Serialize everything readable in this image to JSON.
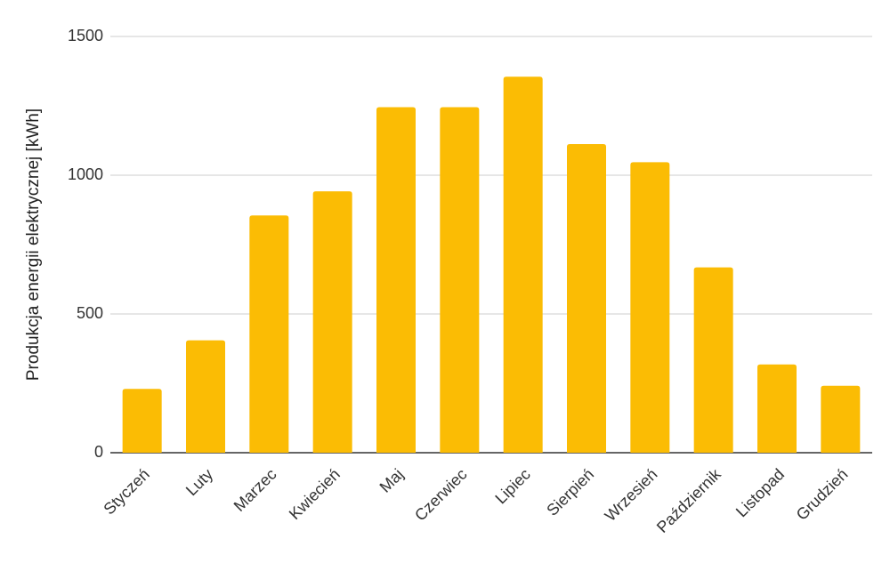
{
  "chart_data": {
    "type": "bar",
    "categories": [
      "Styczeń",
      "Luty",
      "Marzec",
      "Kwiecień",
      "Maj",
      "Czerwiec",
      "Lipiec",
      "Sierpień",
      "Wrzesień",
      "Październik",
      "Listopad",
      "Grudzień"
    ],
    "series": [
      {
        "values": [
          230,
          405,
          855,
          942,
          1245,
          1245,
          1355,
          1112,
          1047,
          668,
          318,
          241
        ]
      }
    ],
    "title": "",
    "xlabel": "",
    "ylabel": "Produkcja energii elektrycznej [kWh]",
    "ylim": [
      0,
      1500
    ],
    "yticks": [
      0,
      500,
      1000,
      1500
    ],
    "grid": true,
    "legend": "none",
    "colors": {
      "bar": "#FBBC04",
      "grid": "#cccccc",
      "axis": "#333333"
    }
  }
}
